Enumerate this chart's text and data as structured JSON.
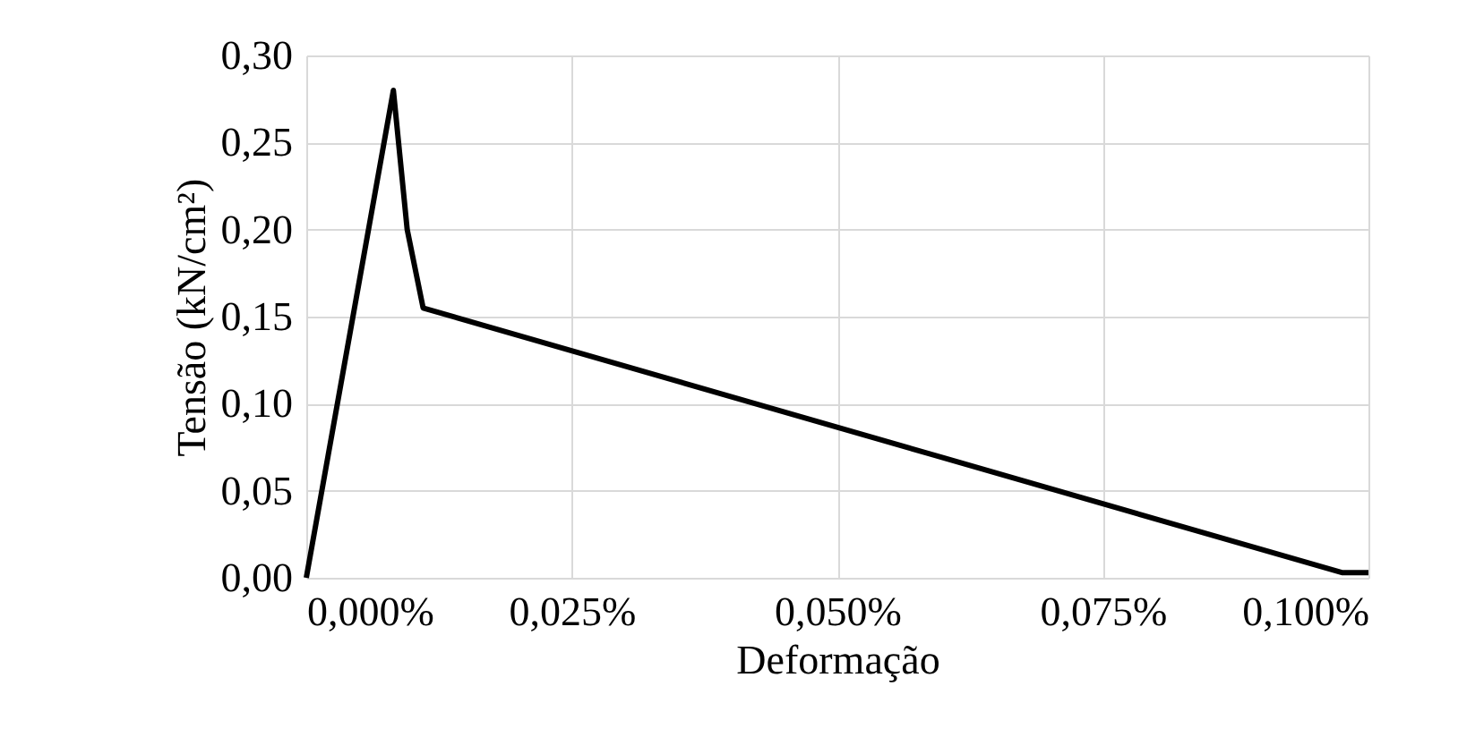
{
  "chart_data": {
    "type": "line",
    "xlabel": "Deformação",
    "ylabel": "Tensão (kN/cm²)",
    "x": [
      0,
      0.0082,
      0.0095,
      0.011,
      0.0975,
      0.1
    ],
    "series": [
      {
        "color": "#000000",
        "values": [
          0,
          0.28,
          0.2,
          0.155,
          0.003,
          0.003
        ]
      }
    ],
    "xlim": [
      0,
      0.1
    ],
    "ylim": [
      0,
      0.3
    ],
    "xticks": [
      {
        "value": 0,
        "label": "0,000%"
      },
      {
        "value": 0.025,
        "label": "0,025%"
      },
      {
        "value": 0.05,
        "label": "0,050%"
      },
      {
        "value": 0.075,
        "label": "0,075%"
      },
      {
        "value": 0.1,
        "label": "0,100%"
      }
    ],
    "yticks": [
      {
        "value": 0,
        "label": "0,00"
      },
      {
        "value": 0.05,
        "label": "0,05"
      },
      {
        "value": 0.1,
        "label": "0,10"
      },
      {
        "value": 0.15,
        "label": "0,15"
      },
      {
        "value": 0.2,
        "label": "0,20"
      },
      {
        "value": 0.25,
        "label": "0,25"
      },
      {
        "value": 0.3,
        "label": "0,30"
      }
    ],
    "grid": true,
    "marker": "none",
    "line_style": "solid"
  }
}
